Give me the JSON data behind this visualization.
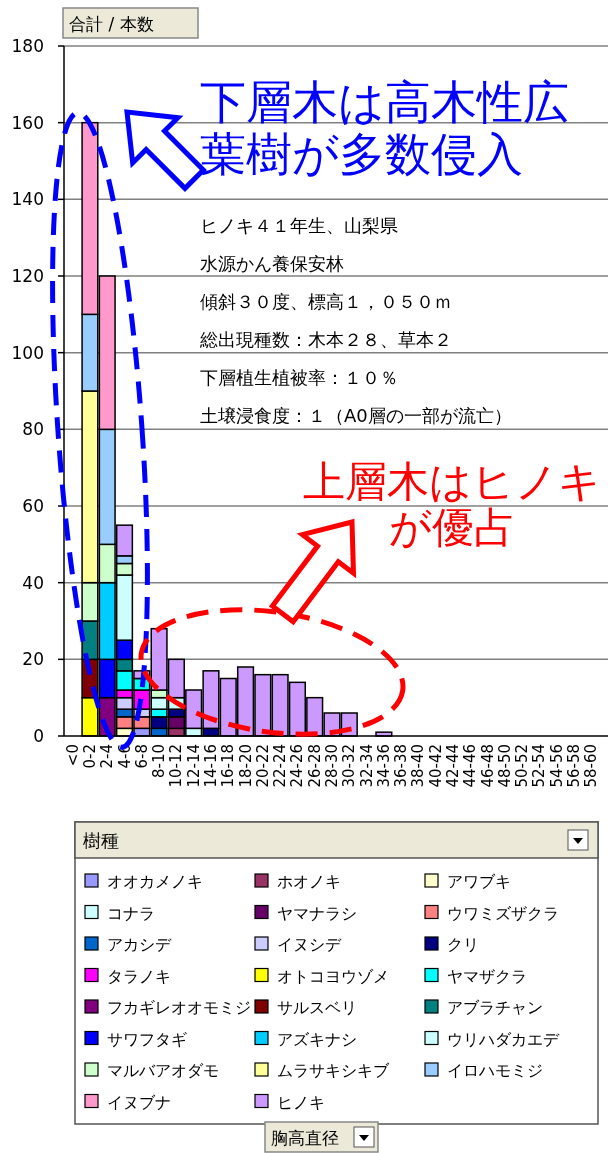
{
  "chart_data": {
    "type": "bar",
    "stacked": true,
    "ylabel": "合計 / 本数",
    "legend_title": "樹種",
    "legend": "bottom",
    "grid": "y",
    "categories": [
      "<0",
      "0-2",
      "2-4",
      "4-6",
      "6-8",
      "8-10",
      "10-12",
      "12-14",
      "14-16",
      "16-18",
      "18-20",
      "20-22",
      "22-24",
      "24-26",
      "26-28",
      "28-30",
      "30-32",
      "32-34",
      "34-36",
      "36-38",
      "38-40",
      "40-42",
      "42-44",
      "44-46",
      "46-48",
      "48-50",
      "50-52",
      "52-54",
      "54-56",
      "56-58",
      "58-60"
    ],
    "ylim": [
      0,
      180
    ],
    "yticks": [
      0,
      20,
      40,
      60,
      80,
      100,
      120,
      140,
      160,
      180
    ],
    "series": [
      {
        "name": "オオカメノキ",
        "color": "#9999ff",
        "values": [
          null,
          null,
          null,
          null,
          2,
          null,
          null,
          null,
          null,
          null,
          null,
          null,
          null,
          null,
          null,
          null,
          null,
          null,
          null,
          null,
          null,
          null,
          null,
          null,
          null,
          null,
          null,
          null,
          null,
          null,
          null
        ]
      },
      {
        "name": "ホオノキ",
        "color": "#993366",
        "values": [
          null,
          null,
          null,
          null,
          null,
          null,
          2,
          null,
          null,
          null,
          null,
          null,
          null,
          null,
          null,
          null,
          null,
          null,
          null,
          null,
          null,
          null,
          null,
          null,
          null,
          null,
          null,
          null,
          null,
          null,
          null
        ]
      },
      {
        "name": "アワブキ",
        "color": "#ffffcc",
        "values": [
          null,
          null,
          null,
          2,
          null,
          null,
          null,
          null,
          null,
          null,
          null,
          null,
          null,
          null,
          null,
          null,
          null,
          null,
          null,
          null,
          null,
          null,
          null,
          null,
          null,
          null,
          null,
          null,
          null,
          null,
          null
        ]
      },
      {
        "name": "コナラ",
        "color": "#ccffff",
        "values": [
          null,
          null,
          null,
          null,
          null,
          null,
          null,
          2,
          null,
          null,
          null,
          null,
          null,
          null,
          null,
          null,
          null,
          null,
          null,
          null,
          null,
          null,
          null,
          null,
          null,
          null,
          null,
          null,
          null,
          null,
          null
        ]
      },
      {
        "name": "ヤマナラシ",
        "color": "#660066",
        "values": [
          null,
          null,
          null,
          null,
          null,
          null,
          3,
          null,
          null,
          null,
          null,
          null,
          null,
          null,
          null,
          null,
          null,
          null,
          null,
          null,
          null,
          null,
          null,
          null,
          null,
          null,
          null,
          null,
          null,
          null,
          null
        ]
      },
      {
        "name": "ウワミズザクラ",
        "color": "#ff8080",
        "values": [
          null,
          null,
          null,
          3,
          3,
          null,
          null,
          null,
          null,
          null,
          null,
          null,
          null,
          null,
          null,
          null,
          null,
          null,
          null,
          null,
          null,
          null,
          null,
          null,
          null,
          null,
          null,
          null,
          null,
          null,
          null
        ]
      },
      {
        "name": "アカシデ",
        "color": "#0066cc",
        "values": [
          null,
          null,
          null,
          2,
          null,
          2,
          null,
          null,
          null,
          null,
          null,
          null,
          null,
          null,
          null,
          null,
          null,
          null,
          null,
          null,
          null,
          null,
          null,
          null,
          null,
          null,
          null,
          null,
          null,
          null,
          null
        ]
      },
      {
        "name": "イヌシデ",
        "color": "#ccccff",
        "values": [
          null,
          null,
          null,
          3,
          2,
          null,
          null,
          null,
          null,
          null,
          null,
          null,
          null,
          null,
          null,
          null,
          null,
          null,
          null,
          null,
          null,
          null,
          null,
          null,
          null,
          null,
          null,
          null,
          null,
          null,
          null
        ]
      },
      {
        "name": "クリ",
        "color": "#000080",
        "values": [
          null,
          null,
          null,
          null,
          null,
          3,
          2,
          null,
          2,
          null,
          null,
          null,
          null,
          null,
          null,
          null,
          null,
          null,
          null,
          null,
          null,
          null,
          null,
          null,
          null,
          null,
          null,
          null,
          null,
          null,
          null
        ]
      },
      {
        "name": "タラノキ",
        "color": "#ff00ff",
        "values": [
          null,
          null,
          null,
          2,
          5,
          null,
          null,
          null,
          null,
          null,
          null,
          null,
          null,
          null,
          null,
          null,
          null,
          null,
          null,
          null,
          null,
          null,
          null,
          null,
          null,
          null,
          null,
          null,
          null,
          null,
          null
        ]
      },
      {
        "name": "オトコヨウゾメ",
        "color": "#ffff00",
        "values": [
          null,
          10,
          null,
          null,
          null,
          null,
          null,
          null,
          null,
          null,
          null,
          null,
          null,
          null,
          null,
          null,
          null,
          null,
          null,
          null,
          null,
          null,
          null,
          null,
          null,
          null,
          null,
          null,
          null,
          null,
          null
        ]
      },
      {
        "name": "ヤマザクラ",
        "color": "#00ffff",
        "values": [
          null,
          null,
          null,
          5,
          3,
          2,
          null,
          null,
          null,
          null,
          null,
          null,
          null,
          null,
          null,
          null,
          null,
          null,
          null,
          null,
          null,
          null,
          null,
          null,
          null,
          null,
          null,
          null,
          null,
          null,
          null
        ]
      },
      {
        "name": "フカギレオオモミジ",
        "color": "#800080",
        "values": [
          null,
          null,
          10,
          null,
          null,
          null,
          null,
          null,
          null,
          null,
          null,
          null,
          null,
          null,
          null,
          null,
          null,
          null,
          null,
          null,
          null,
          null,
          null,
          null,
          null,
          null,
          null,
          null,
          null,
          null,
          null
        ]
      },
      {
        "name": "サルスベリ",
        "color": "#800000",
        "values": [
          null,
          10,
          null,
          null,
          null,
          null,
          null,
          null,
          null,
          null,
          null,
          null,
          null,
          null,
          null,
          null,
          null,
          null,
          null,
          null,
          null,
          null,
          null,
          null,
          null,
          null,
          null,
          null,
          null,
          null,
          null
        ]
      },
      {
        "name": "アブラチャン",
        "color": "#008080",
        "values": [
          null,
          10,
          null,
          3,
          null,
          null,
          null,
          null,
          null,
          null,
          null,
          null,
          null,
          null,
          null,
          null,
          null,
          null,
          null,
          null,
          null,
          null,
          null,
          null,
          null,
          null,
          null,
          null,
          null,
          null,
          null
        ]
      },
      {
        "name": "サワフタギ",
        "color": "#0000ff",
        "values": [
          null,
          null,
          10,
          5,
          null,
          null,
          null,
          null,
          null,
          null,
          null,
          null,
          null,
          null,
          null,
          null,
          null,
          null,
          null,
          null,
          null,
          null,
          null,
          null,
          null,
          null,
          null,
          null,
          null,
          null,
          null
        ]
      },
      {
        "name": "アズキナシ",
        "color": "#00ccff",
        "values": [
          null,
          null,
          20,
          null,
          null,
          null,
          null,
          null,
          null,
          null,
          null,
          null,
          null,
          null,
          null,
          null,
          null,
          null,
          null,
          null,
          null,
          null,
          null,
          null,
          null,
          null,
          null,
          null,
          null,
          null,
          null
        ]
      },
      {
        "name": "ウリハダカエデ",
        "color": "#ccffff",
        "values": [
          null,
          null,
          null,
          17,
          null,
          3,
          3,
          null,
          null,
          null,
          null,
          null,
          null,
          null,
          null,
          null,
          null,
          null,
          null,
          null,
          null,
          null,
          null,
          null,
          null,
          null,
          null,
          null,
          null,
          null,
          null
        ]
      },
      {
        "name": "マルバアオダモ",
        "color": "#ccffcc",
        "values": [
          null,
          10,
          10,
          3,
          null,
          2,
          null,
          null,
          null,
          null,
          null,
          null,
          null,
          null,
          null,
          null,
          null,
          null,
          null,
          null,
          null,
          null,
          null,
          null,
          null,
          null,
          null,
          null,
          null,
          null,
          null
        ]
      },
      {
        "name": "ムラサキシキブ",
        "color": "#ffff99",
        "values": [
          null,
          50,
          null,
          null,
          null,
          null,
          null,
          null,
          null,
          null,
          null,
          null,
          null,
          null,
          null,
          null,
          null,
          null,
          null,
          null,
          null,
          null,
          null,
          null,
          null,
          null,
          null,
          null,
          null,
          null,
          null
        ]
      },
      {
        "name": "イロハモミジ",
        "color": "#99ccff",
        "values": [
          null,
          20,
          30,
          2,
          null,
          null,
          null,
          null,
          null,
          null,
          null,
          null,
          null,
          null,
          null,
          null,
          null,
          null,
          null,
          null,
          null,
          null,
          null,
          null,
          null,
          null,
          null,
          null,
          null,
          null,
          null
        ]
      },
      {
        "name": "イヌブナ",
        "color": "#ff99cc",
        "values": [
          null,
          50,
          40,
          null,
          null,
          null,
          null,
          null,
          null,
          null,
          null,
          null,
          null,
          null,
          null,
          null,
          null,
          null,
          null,
          null,
          null,
          null,
          null,
          null,
          null,
          null,
          null,
          null,
          null,
          null,
          null
        ]
      },
      {
        "name": "ヒノキ",
        "color": "#cc99ff",
        "values": [
          null,
          null,
          null,
          8,
          2,
          16,
          10,
          10,
          15,
          15,
          18,
          16,
          16,
          14,
          10,
          6,
          6,
          null,
          1,
          null,
          null,
          null,
          null,
          null,
          null,
          null,
          null,
          null,
          null,
          null,
          null
        ]
      }
    ],
    "annotations": [
      "下層木は高木性広葉樹が多数侵入",
      "上層木はヒノキが優占",
      "ヒノキ４１年生、山梨県",
      "水源かん養保安林",
      "傾斜３０度、標高１，０５０ｍ",
      "総出現種数：木本２８、草本２",
      "下層植生植被率：１０％",
      "土壌浸食度：１（A0層の一部が流亡）",
      "胸高直径"
    ]
  }
}
